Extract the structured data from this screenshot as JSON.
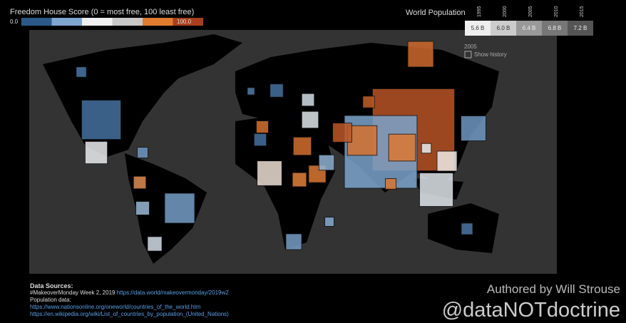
{
  "legend": {
    "title": "Freedom House Score (0 = most free, 100 least free)",
    "min": {
      "value": 0,
      "label": "0.0"
    },
    "max": {
      "value": 100,
      "label": "100.0"
    }
  },
  "population": {
    "title": "World Population",
    "years": [
      1995,
      2000,
      2005,
      2010,
      2015
    ],
    "labels": [
      "5.6 B",
      "6.0 B",
      "6.4 B",
      "6.8 B",
      "7.2 B"
    ]
  },
  "history": {
    "year": "2005",
    "label": "Show history"
  },
  "map": {
    "squares": [
      {
        "score": 86,
        "population": 1300
      },
      {
        "score": 24,
        "population": 1020
      },
      {
        "score": 8,
        "population": 297
      },
      {
        "score": 74,
        "population": 127
      },
      {
        "score": 22,
        "population": 173
      },
      {
        "score": 42,
        "population": 217
      },
      {
        "score": 70,
        "population": 170
      },
      {
        "score": 66,
        "population": 140
      },
      {
        "score": 48,
        "population": 118
      },
      {
        "score": 20,
        "population": 120
      },
      {
        "score": 44,
        "population": 96
      },
      {
        "score": 46,
        "population": 77
      },
      {
        "score": 72,
        "population": 63
      },
      {
        "score": 84,
        "population": 70
      },
      {
        "score": 66,
        "population": 57
      },
      {
        "score": 42,
        "population": 54
      },
      {
        "score": 8,
        "population": 29
      },
      {
        "score": 8,
        "population": 33
      },
      {
        "score": 10,
        "population": 20
      },
      {
        "score": 10,
        "population": 25
      },
      {
        "score": 28,
        "population": 45
      },
      {
        "score": 70,
        "population": 28
      },
      {
        "score": 64,
        "population": 38
      },
      {
        "score": 40,
        "population": 40
      },
      {
        "score": 30,
        "population": 35
      },
      {
        "score": 22,
        "population": 48
      },
      {
        "score": 62,
        "population": 30
      },
      {
        "score": 20,
        "population": 22
      },
      {
        "score": 40,
        "population": 30
      },
      {
        "score": 80,
        "population": 26
      },
      {
        "score": 12,
        "population": 10
      },
      {
        "score": 68,
        "population": 22
      },
      {
        "score": 44,
        "population": 18
      },
      {
        "score": 26,
        "population": 16
      }
    ]
  },
  "sources": {
    "heading": "Data Sources:",
    "line1": "#MakeoverMonday Week 2, 2019",
    "link1": "https://data.world/makeovermonday/2019w2",
    "line2": "Population data:",
    "link2": "https://www.nationsonline.org/oneworld/countries_of_the_world.htm",
    "link3": "https://en.wikipedia.org/wiki/List_of_countries_by_population_(United_Nations)"
  },
  "author": "Authored by Will Strouse",
  "handle": "@dataNOTdoctrine"
}
